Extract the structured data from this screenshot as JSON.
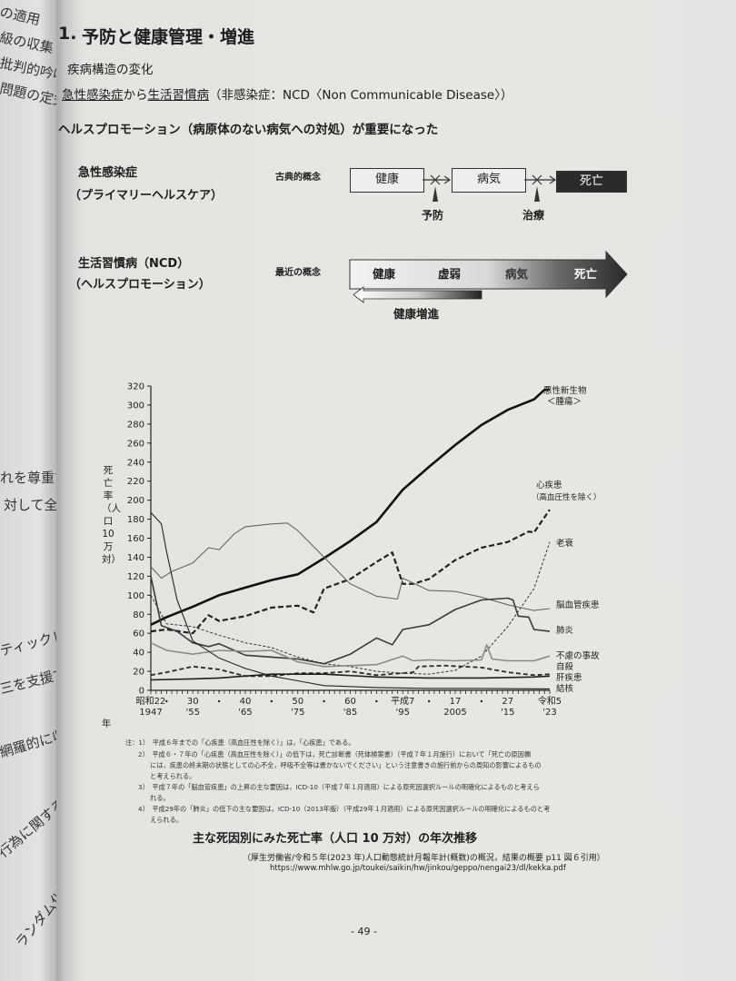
{
  "left_page_fragments": [
    "の適用",
    "級の収集",
    "批判的吟味",
    "問題の定式化",
    "れを尊重するこ",
    "対して全人格",
    "ティックレビ",
    "三を支援するた",
    "網羅的に収集し",
    "行為に関するこ",
    "ランダム化"
  ],
  "heading": {
    "number": "1.",
    "title": "予防と健康管理・増進"
  },
  "section": {
    "subtitle": "疾病構造の変化",
    "line_part1": "急性感染症",
    "line_part2": "から",
    "line_part3": "生活習慣病",
    "line_part4": "（非感染症：NCD〈Non Communicable Disease〉）",
    "emphasis": "ヘルスプロモーション（病原体のない病気への対処）が重要になった"
  },
  "diagram": {
    "row1_label": "急性感染症",
    "row1_sub": "（プライマリーヘルスケア）",
    "row2_label": "生活習慣病（NCD）",
    "row2_sub": "（ヘルスプロモーション）",
    "classic_label": "古典的概念",
    "classic_boxes": [
      "健康",
      "病気",
      "死亡"
    ],
    "prevention": "予防",
    "treatment": "治療",
    "modern_label": "最近の概念",
    "modern_stages": [
      "健康",
      "虚弱",
      "病気",
      "死亡"
    ],
    "promotion": "健康増進"
  },
  "chart_data": {
    "type": "line",
    "title": "主な死因別にみた死亡率（人口10万対）の年次推移",
    "ylabel": "死亡率（人口10万対）",
    "xlabel": "年",
    "ylim": [
      0,
      320
    ],
    "yticks": [
      0,
      20,
      40,
      60,
      80,
      100,
      120,
      140,
      160,
      180,
      200,
      220,
      240,
      260,
      280,
      300,
      320
    ],
    "xlim": [
      1947,
      2023
    ],
    "xticks": [
      {
        "year": 1947,
        "era": "昭和22",
        "western": "1947"
      },
      {
        "year": 1955,
        "era": "30",
        "western": "'55"
      },
      {
        "year": 1965,
        "era": "40",
        "western": "'65"
      },
      {
        "year": 1975,
        "era": "50",
        "western": "'75"
      },
      {
        "year": 1985,
        "era": "60",
        "western": "'85"
      },
      {
        "year": 1995,
        "era": "平成7",
        "western": "'95"
      },
      {
        "year": 2005,
        "era": "17",
        "western": "2005"
      },
      {
        "year": 2015,
        "era": "27",
        "western": "'15"
      },
      {
        "year": 2023,
        "era": "令和5",
        "western": "'23"
      }
    ],
    "xdots": [
      1950,
      1960,
      1970,
      1980,
      1990,
      2000,
      2010
    ],
    "grid": false,
    "series": [
      {
        "name": "悪性新生物＜腫瘍＞",
        "style": "thick-solid",
        "color": "#111111",
        "points": [
          [
            1947,
            69
          ],
          [
            1950,
            77
          ],
          [
            1955,
            88
          ],
          [
            1960,
            100
          ],
          [
            1965,
            108
          ],
          [
            1970,
            116
          ],
          [
            1975,
            122
          ],
          [
            1980,
            139
          ],
          [
            1985,
            157
          ],
          [
            1990,
            177
          ],
          [
            1995,
            211
          ],
          [
            2000,
            235
          ],
          [
            2005,
            258
          ],
          [
            2010,
            279
          ],
          [
            2015,
            295
          ],
          [
            2020,
            306
          ],
          [
            2022,
            316
          ],
          [
            2023,
            316
          ]
        ]
      },
      {
        "name": "心疾患（高血圧性を除く）",
        "style": "thick-dashed",
        "color": "#222222",
        "points": [
          [
            1947,
            62
          ],
          [
            1950,
            64
          ],
          [
            1955,
            60
          ],
          [
            1958,
            79
          ],
          [
            1960,
            73
          ],
          [
            1965,
            78
          ],
          [
            1970,
            87
          ],
          [
            1975,
            89
          ],
          [
            1978,
            82
          ],
          [
            1980,
            107
          ],
          [
            1985,
            117
          ],
          [
            1990,
            135
          ],
          [
            1993,
            145
          ],
          [
            1995,
            112
          ],
          [
            1997,
            112
          ],
          [
            2000,
            117
          ],
          [
            2005,
            137
          ],
          [
            2010,
            150
          ],
          [
            2015,
            156
          ],
          [
            2019,
            167
          ],
          [
            2020,
            166
          ],
          [
            2023,
            190
          ]
        ]
      },
      {
        "name": "老衰",
        "style": "thin-dashed",
        "color": "#333333",
        "points": [
          [
            1947,
            100
          ],
          [
            1950,
            70
          ],
          [
            1955,
            67
          ],
          [
            1960,
            58
          ],
          [
            1965,
            50
          ],
          [
            1970,
            45
          ],
          [
            1975,
            35
          ],
          [
            1980,
            28
          ],
          [
            1985,
            25
          ],
          [
            1990,
            20
          ],
          [
            1995,
            18
          ],
          [
            2000,
            17
          ],
          [
            2005,
            21
          ],
          [
            2010,
            36
          ],
          [
            2015,
            67
          ],
          [
            2020,
            107
          ],
          [
            2023,
            156
          ]
        ]
      },
      {
        "name": "脳血管疾患",
        "style": "thin-solid",
        "color": "#666666",
        "points": [
          [
            1947,
            130
          ],
          [
            1949,
            118
          ],
          [
            1951,
            125
          ],
          [
            1955,
            134
          ],
          [
            1958,
            150
          ],
          [
            1960,
            148
          ],
          [
            1963,
            165
          ],
          [
            1965,
            172
          ],
          [
            1970,
            175
          ],
          [
            1973,
            176
          ],
          [
            1975,
            168
          ],
          [
            1980,
            140
          ],
          [
            1985,
            112
          ],
          [
            1990,
            99
          ],
          [
            1994,
            96
          ],
          [
            1995,
            118
          ],
          [
            2000,
            105
          ],
          [
            2005,
            104
          ],
          [
            2010,
            98
          ],
          [
            2015,
            90
          ],
          [
            2020,
            84
          ],
          [
            2023,
            86
          ]
        ]
      },
      {
        "name": "肺炎",
        "style": "medium-solid",
        "color": "#3a3a3a",
        "points": [
          [
            1947,
            120
          ],
          [
            1949,
            68
          ],
          [
            1952,
            62
          ],
          [
            1955,
            50
          ],
          [
            1958,
            46
          ],
          [
            1960,
            49
          ],
          [
            1965,
            37
          ],
          [
            1970,
            35
          ],
          [
            1975,
            33
          ],
          [
            1980,
            28
          ],
          [
            1985,
            38
          ],
          [
            1990,
            55
          ],
          [
            1993,
            48
          ],
          [
            1995,
            64
          ],
          [
            2000,
            69
          ],
          [
            2005,
            85
          ],
          [
            2010,
            95
          ],
          [
            2015,
            97
          ],
          [
            2016,
            95
          ],
          [
            2017,
            78
          ],
          [
            2019,
            77
          ],
          [
            2020,
            64
          ],
          [
            2023,
            62
          ]
        ]
      },
      {
        "name": "不慮の事故",
        "style": "medium-solid",
        "color": "#8a8a8a",
        "points": [
          [
            1947,
            50
          ],
          [
            1950,
            42
          ],
          [
            1955,
            38
          ],
          [
            1960,
            42
          ],
          [
            1965,
            41
          ],
          [
            1970,
            42
          ],
          [
            1975,
            30
          ],
          [
            1980,
            25
          ],
          [
            1985,
            26
          ],
          [
            1990,
            27
          ],
          [
            1995,
            36
          ],
          [
            1997,
            31
          ],
          [
            2000,
            32
          ],
          [
            2005,
            31
          ],
          [
            2010,
            32
          ],
          [
            2011,
            48
          ],
          [
            2012,
            33
          ],
          [
            2015,
            31
          ],
          [
            2020,
            31
          ],
          [
            2023,
            36
          ]
        ]
      },
      {
        "name": "自殺",
        "style": "medium-dashed",
        "color": "#2a2a2a",
        "points": [
          [
            1947,
            16
          ],
          [
            1950,
            19
          ],
          [
            1955,
            25
          ],
          [
            1960,
            22
          ],
          [
            1965,
            15
          ],
          [
            1970,
            15
          ],
          [
            1975,
            18
          ],
          [
            1980,
            18
          ],
          [
            1985,
            20
          ],
          [
            1990,
            16
          ],
          [
            1997,
            19
          ],
          [
            1998,
            25
          ],
          [
            2003,
            26
          ],
          [
            2010,
            24
          ],
          [
            2015,
            19
          ],
          [
            2020,
            16
          ],
          [
            2023,
            17
          ]
        ]
      },
      {
        "name": "肝疾患",
        "style": "medium-solid",
        "color": "#1f1f1f",
        "points": [
          [
            1947,
            11
          ],
          [
            1955,
            12
          ],
          [
            1960,
            13
          ],
          [
            1970,
            17
          ],
          [
            1980,
            17
          ],
          [
            1990,
            14
          ],
          [
            2000,
            13
          ],
          [
            2010,
            13
          ],
          [
            2020,
            14
          ],
          [
            2023,
            15
          ]
        ]
      },
      {
        "name": "結核",
        "style": "thin-solid",
        "color": "#222222",
        "points": [
          [
            1947,
            187
          ],
          [
            1949,
            175
          ],
          [
            1950,
            146
          ],
          [
            1952,
            95
          ],
          [
            1955,
            52
          ],
          [
            1960,
            34
          ],
          [
            1965,
            23
          ],
          [
            1970,
            15
          ],
          [
            1975,
            10
          ],
          [
            1980,
            5
          ],
          [
            1990,
            3
          ],
          [
            2000,
            2
          ],
          [
            2010,
            2
          ],
          [
            2023,
            1.5
          ]
        ]
      }
    ],
    "label_lines": {
      "cancer": [
        "悪性新生物",
        "＜腫瘍＞"
      ],
      "heart": [
        "心疾患",
        "（高血圧性を除く）"
      ]
    }
  },
  "notes": [
    "注：1）　平成６年までの「心疾患（高血圧性を除く）」は，「心疾患」である。",
    "2）　平成６・７年の「心疾患（高血圧性を除く）」の低下は，死亡診断書（死体検案書）（平成７年１月施行）において「死亡の原因欄",
    "には，疾患の終末期の状態としての心不全，呼吸不全等は書かないでください」という注意書きの施行前からの周知の影響によるもの",
    "と考えられる。",
    "3）　平成７年の「脳血管疾患」の上昇の主な要因は，ICD-10（平成７年１月適用）による原死因選択ルールの明確化によるものと考えら",
    "れる。",
    "4）　平成29年の「肺炎」の低下の主な要因は，ICD-10（2013年版）（平成29年１月適用）による原死因選択ルールの明確化によるものと考",
    "えられる。"
  ],
  "caption": "主な死因別にみた死亡率（人口 10 万対）の年次推移",
  "source": "（厚生労働省/令和５年(2023 年)人口動態統計月報年計(概数)の概況，結果の概要 p11 図６引用）",
  "url": "https://www.mhlw.go.jp/toukei/saikin/hw/jinkou/geppo/nengai23/dl/kekka.pdf",
  "page_number": "- 49 -"
}
